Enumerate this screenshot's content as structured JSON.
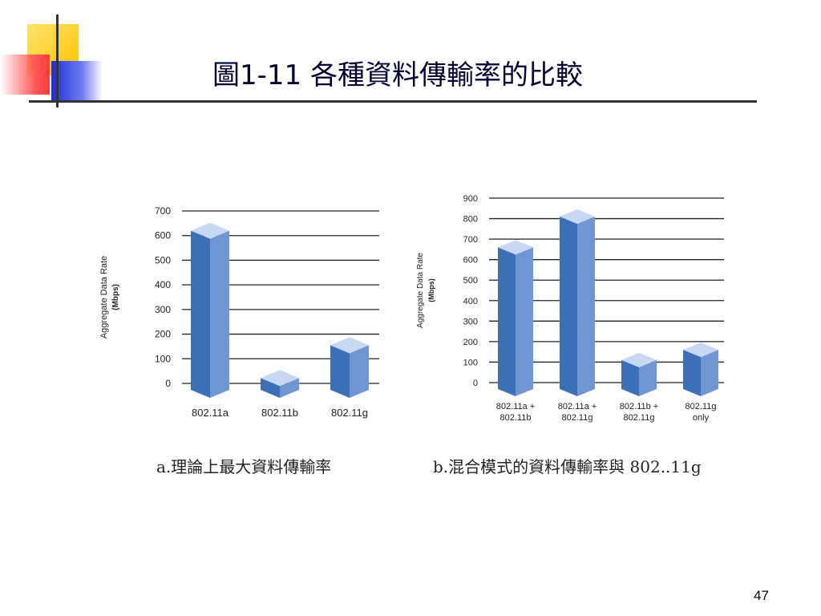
{
  "slide": {
    "title": "圖1-11 各種資料傳輸率的比較",
    "page_number": "47",
    "caption_a": "a.理論上最大資料傳輸率",
    "caption_b": "b.混合模式的資料傳輸率與 802..11g"
  },
  "colors": {
    "bar_front": "#3B6FB8",
    "bar_side": "#6F95D2",
    "bar_top": "#C9D8F2",
    "decor_yellow": "#FFD21F",
    "decor_red": "#FF4B4B",
    "decor_blue": "#2B3FE0"
  },
  "chart_data": [
    {
      "type": "bar",
      "title": "",
      "ylabel": "Aggregate Data Rate",
      "ylabel_unit": "(Mbps)",
      "xlabel": "",
      "ylim": [
        0,
        700
      ],
      "yticks": [
        "700",
        "600",
        "500",
        "400",
        "300",
        "200",
        "100",
        "0"
      ],
      "categories": [
        [
          "802.11a"
        ],
        [
          "802.11b"
        ],
        [
          "802.11g"
        ]
      ],
      "values": [
        620,
        22,
        155
      ],
      "grid": true
    },
    {
      "type": "bar",
      "title": "",
      "ylabel": "Aggregate Data Rate",
      "ylabel_unit": "(Mbps)",
      "xlabel": "",
      "ylim": [
        0,
        900
      ],
      "yticks": [
        "900",
        "800",
        "700",
        "600",
        "500",
        "400",
        "300",
        "200",
        "100",
        "0"
      ],
      "categories": [
        [
          "802.11a +",
          "802.11b"
        ],
        [
          "802.11a +",
          "802.11g"
        ],
        [
          "802.11b +",
          "802.11g"
        ],
        [
          "802.11g",
          "only"
        ]
      ],
      "values": [
        660,
        810,
        110,
        160
      ],
      "grid": true
    }
  ]
}
